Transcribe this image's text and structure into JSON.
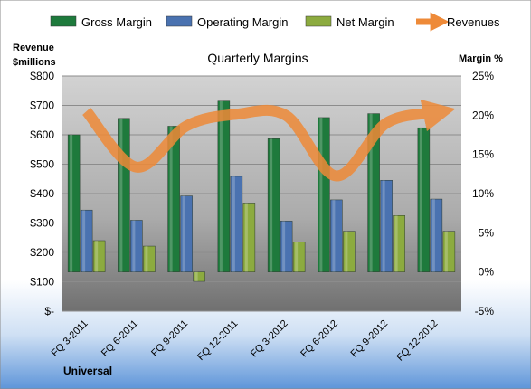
{
  "chart_data": {
    "type": "bar",
    "title": "Quarterly Margins",
    "left_axis_title_line1": "Revenue",
    "left_axis_title_line2": "$millions",
    "right_axis_title": "Margin %",
    "footer_label": "Universal",
    "categories": [
      "FQ 3-2011",
      "FQ 6-2011",
      "FQ 9-2011",
      "FQ 12-2011",
      "FQ 3-2012",
      "FQ 6-2012",
      "FQ 9-2012",
      "FQ 12-2012"
    ],
    "left_axis": {
      "ylim": [
        0,
        800
      ],
      "ticks": [
        "$-",
        "$100",
        "$200",
        "$300",
        "$400",
        "$500",
        "$600",
        "$700",
        "$800"
      ]
    },
    "right_axis": {
      "ylim": [
        -5,
        25
      ],
      "ticks": [
        "-5%",
        "0%",
        "5%",
        "10%",
        "15%",
        "20%",
        "25%"
      ]
    },
    "series": [
      {
        "name": "Gross Margin",
        "axis": "right",
        "color": "#1e7a3c",
        "values": [
          17.5,
          19.6,
          18.6,
          21.8,
          17.0,
          19.7,
          20.2,
          18.4
        ]
      },
      {
        "name": "Operating Margin",
        "axis": "right",
        "color": "#4a72b0",
        "values": [
          7.9,
          6.6,
          9.7,
          12.2,
          6.5,
          9.2,
          11.7,
          9.3
        ]
      },
      {
        "name": "Net Margin",
        "axis": "right",
        "color": "#8cab3f",
        "values": [
          4.0,
          3.3,
          -1.2,
          8.8,
          3.8,
          5.2,
          7.2,
          5.2
        ]
      },
      {
        "name": "Revenues",
        "axis": "left",
        "type": "line",
        "color": "#ee8a38",
        "values": [
          680,
          490,
          630,
          670,
          665,
          460,
          640,
          675
        ]
      }
    ],
    "legend_position": "top",
    "grid": true
  }
}
